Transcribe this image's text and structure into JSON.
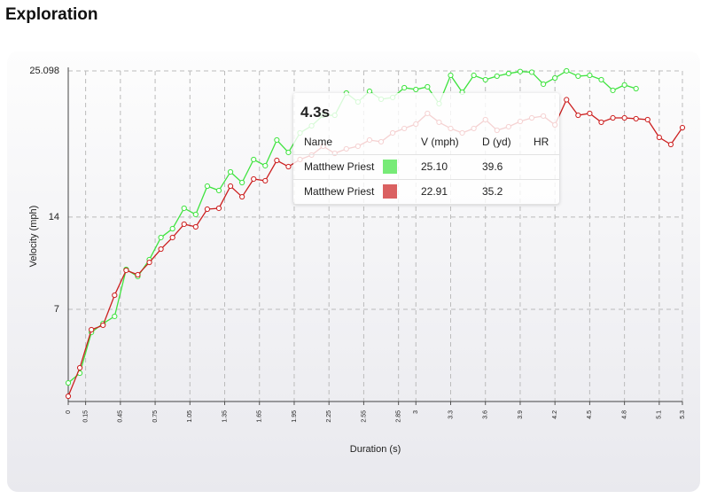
{
  "page_title": "Exploration",
  "chart_data": {
    "type": "line",
    "x_label": "Duration (s)",
    "y_label": "Velocity (mph)",
    "x": [
      0,
      0.1,
      0.2,
      0.3,
      0.4,
      0.5,
      0.6,
      0.7,
      0.8,
      0.9,
      1,
      1.1,
      1.2,
      1.3,
      1.4,
      1.5,
      1.6,
      1.7,
      1.8,
      1.9,
      2,
      2.1,
      2.2,
      2.3,
      2.4,
      2.5,
      2.6,
      2.7,
      2.8,
      2.9,
      3,
      3.1,
      3.2,
      3.3,
      3.4,
      3.5,
      3.6,
      3.7,
      3.8,
      3.9,
      4,
      4.1,
      4.2,
      4.3,
      4.4,
      4.5,
      4.6,
      4.7,
      4.8,
      4.9,
      5,
      5.1,
      5.2,
      5.3
    ],
    "series": [
      {
        "name": "Matthew Priest",
        "color": "#3fe33f",
        "values": [
          1.41,
          2.15,
          5.25,
          5.92,
          6.46,
          10.03,
          9.49,
          10.77,
          12.45,
          13.12,
          14.67,
          14.2,
          16.35,
          16.02,
          17.43,
          16.62,
          18.37,
          17.9,
          19.85,
          18.91,
          20.39,
          20.93,
          21.73,
          21.73,
          23.42,
          22.74,
          23.55,
          22.95,
          23.08,
          23.82,
          23.69,
          23.89,
          22.61,
          24.76,
          23.48,
          24.76,
          24.43,
          24.7,
          24.9,
          25.05,
          25.0,
          24.09,
          24.56,
          25.1,
          24.7,
          24.76,
          24.43,
          23.62,
          24.03,
          23.75,
          null,
          null,
          null,
          null
        ]
      },
      {
        "name": "Matthew Priest",
        "color": "#cc1f1f",
        "values": [
          0.4,
          2.56,
          5.45,
          5.79,
          8.07,
          9.96,
          9.62,
          10.56,
          11.57,
          12.45,
          13.46,
          13.26,
          14.6,
          14.67,
          16.35,
          15.54,
          16.89,
          16.76,
          18.3,
          17.83,
          18.37,
          18.71,
          19.38,
          18.84,
          19.18,
          19.38,
          19.85,
          19.72,
          20.39,
          20.73,
          21.06,
          21.87,
          21.2,
          20.73,
          20.39,
          20.73,
          21.4,
          20.59,
          20.86,
          21.26,
          21.53,
          21.67,
          21.0,
          22.91,
          21.73,
          21.87,
          21.2,
          21.53,
          21.53,
          21.47,
          21.4,
          20.05,
          19.51,
          20.79
        ]
      }
    ],
    "xlim": [
      0,
      5.3
    ],
    "xticks": [
      0,
      0.15,
      0.45,
      0.75,
      1.05,
      1.35,
      1.65,
      1.95,
      2.25,
      2.55,
      2.85,
      3,
      3.3,
      3.6,
      3.9,
      4.2,
      4.5,
      4.8,
      5.1,
      5.3
    ],
    "ylim": [
      0,
      25.098
    ],
    "yticks": [
      7,
      14,
      25.098
    ],
    "grid": true
  },
  "tooltip": {
    "title": "4.3s",
    "columns": [
      "Name",
      "V (mph)",
      "D (yd)",
      "HR"
    ],
    "rows": [
      [
        "Matthew Priest",
        "25.10",
        "39.6"
      ],
      [
        "Matthew Priest",
        "22.91",
        "35.2"
      ]
    ]
  }
}
